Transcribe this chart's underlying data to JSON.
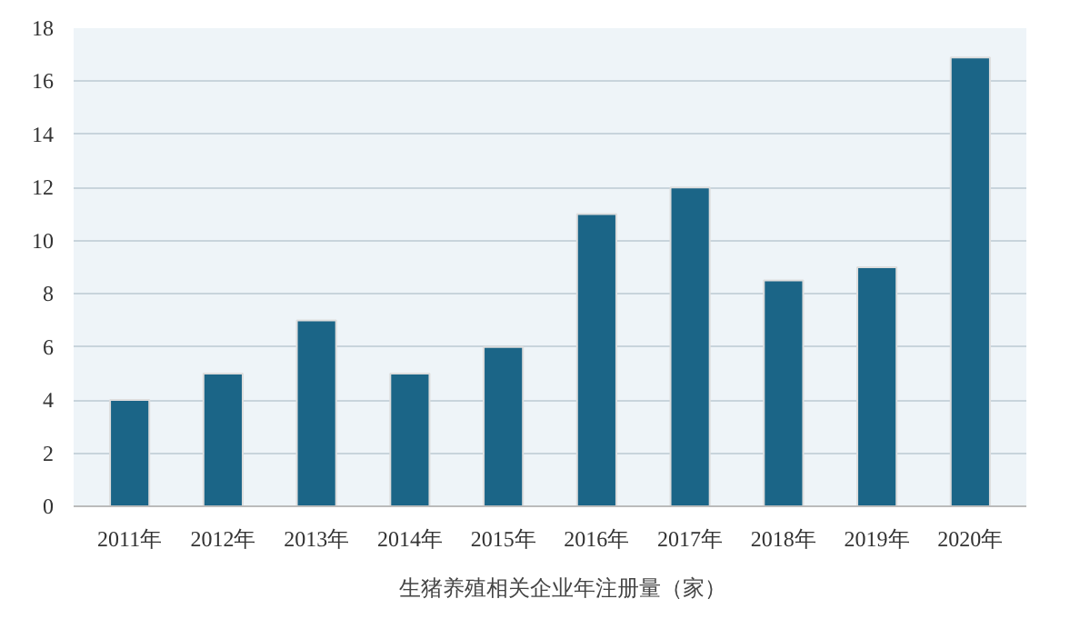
{
  "chart_data": {
    "type": "bar",
    "categories": [
      "2011年",
      "2012年",
      "2013年",
      "2014年",
      "2015年",
      "2016年",
      "2017年",
      "2018年",
      "2019年",
      "2020年"
    ],
    "series": [
      {
        "name": "生猪养殖相关企业年注册量（家）",
        "color": "#1b6587",
        "values": [
          4,
          5,
          7,
          5,
          6,
          11,
          12,
          8.5,
          9,
          16.9
        ]
      }
    ],
    "ylim": [
      0,
      18
    ],
    "yticks": [
      0,
      2,
      4,
      6,
      8,
      10,
      12,
      14,
      16,
      18
    ],
    "grid": "y",
    "legend": "bottom"
  }
}
